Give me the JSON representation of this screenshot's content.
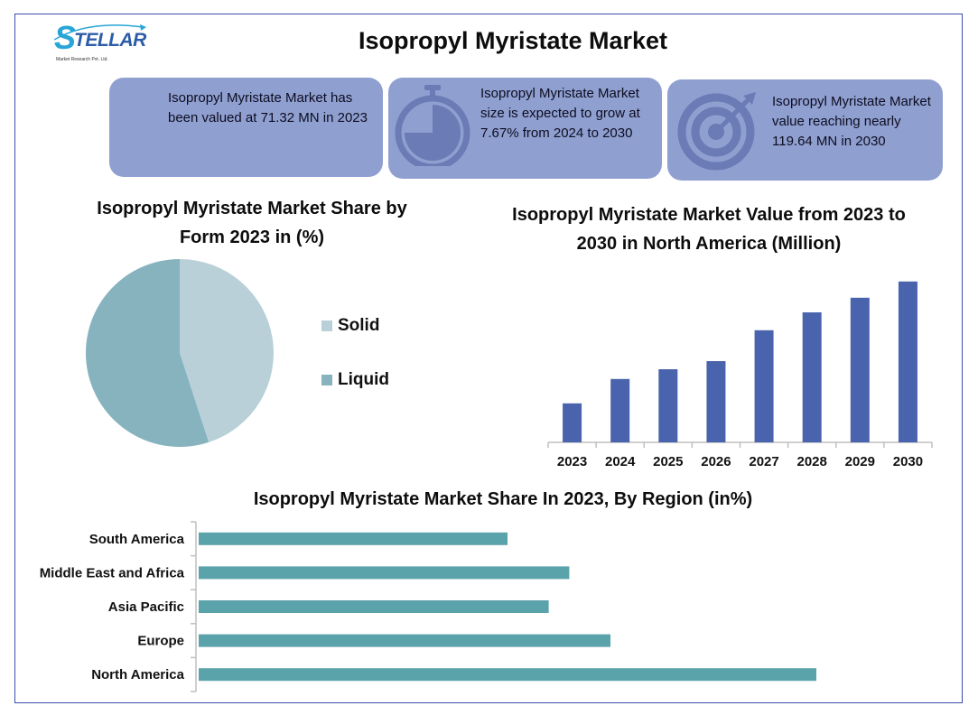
{
  "brand": {
    "logo_text": "STELLAR",
    "logo_subtext": "Market Research Pvt. Ltd."
  },
  "page_title": "Isopropyl Myristate Market",
  "cards": [
    {
      "text": "Isopropyl Myristate Market has been valued at 71.32 MN in 2023",
      "icon": "none"
    },
    {
      "text": "Isopropyl Myristate Market size is expected to grow at 7.67% from 2024 to 2030",
      "icon": "stopwatch-icon"
    },
    {
      "text": "Isopropyl Myristate Market value reaching nearly 119.64 MN in 2030",
      "icon": "target-icon"
    }
  ],
  "colors": {
    "card_bg": "#8f9fd0",
    "pie_solid": "#b9d0d8",
    "pie_liquid": "#86b3be",
    "bar_blue": "#4a63ad",
    "bar_teal": "#5ba3aa",
    "frame": "#3a4ea8"
  },
  "chart_data": [
    {
      "type": "pie",
      "title": "Isopropyl Myristate Market Share by Form 2023 in (%)",
      "categories": [
        "Solid",
        "Liquid"
      ],
      "values": [
        45,
        55
      ],
      "colors": [
        "#b9d0d8",
        "#86b3be"
      ],
      "legend": "right"
    },
    {
      "type": "bar",
      "title": "Isopropyl Myristate Market Value from 2023 to 2030 in North America (Million)",
      "categories": [
        "2023",
        "2024",
        "2025",
        "2026",
        "2027",
        "2028",
        "2029",
        "2030"
      ],
      "values": [
        24,
        39,
        45,
        50,
        69,
        80,
        89,
        99
      ],
      "ylim": [
        0,
        100
      ],
      "grid": false
    },
    {
      "type": "bar",
      "orientation": "horizontal",
      "title": "Isopropyl Myristate Market Share In 2023, By Region (in%)",
      "categories": [
        "South America",
        "Middle East and Africa",
        "Asia Pacific",
        "Europe",
        "North America"
      ],
      "values": [
        15,
        18,
        17,
        20,
        30
      ],
      "xlim": [
        0,
        40
      ],
      "grid": false
    }
  ]
}
